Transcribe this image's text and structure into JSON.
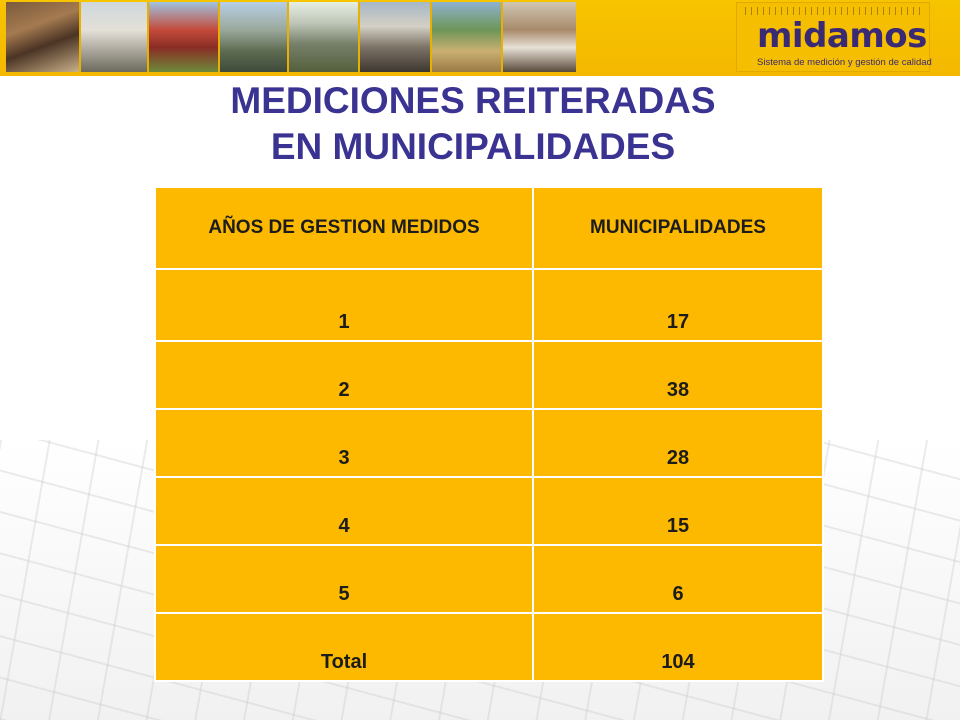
{
  "logo": {
    "name": "midamos",
    "tagline": "Sistema de medición y gestión de calidad"
  },
  "title": {
    "line1": "MEDICIONES REITERADAS",
    "line2": "EN MUNICIPALIDADES"
  },
  "table": {
    "headers": [
      "AÑOS DE GESTION MEDIDOS",
      "MUNICIPALIDADES"
    ],
    "rows": [
      {
        "years": "1",
        "count": "17"
      },
      {
        "years": "2",
        "count": "38"
      },
      {
        "years": "3",
        "count": "28"
      },
      {
        "years": "4",
        "count": "15"
      },
      {
        "years": "5",
        "count": "6"
      },
      {
        "years": "Total",
        "count": "104"
      }
    ]
  },
  "colors": {
    "header_strip": "#f4b800",
    "title_text": "#3a3392",
    "table_cell": "#fdb900",
    "logo_text": "#3a2a73"
  }
}
